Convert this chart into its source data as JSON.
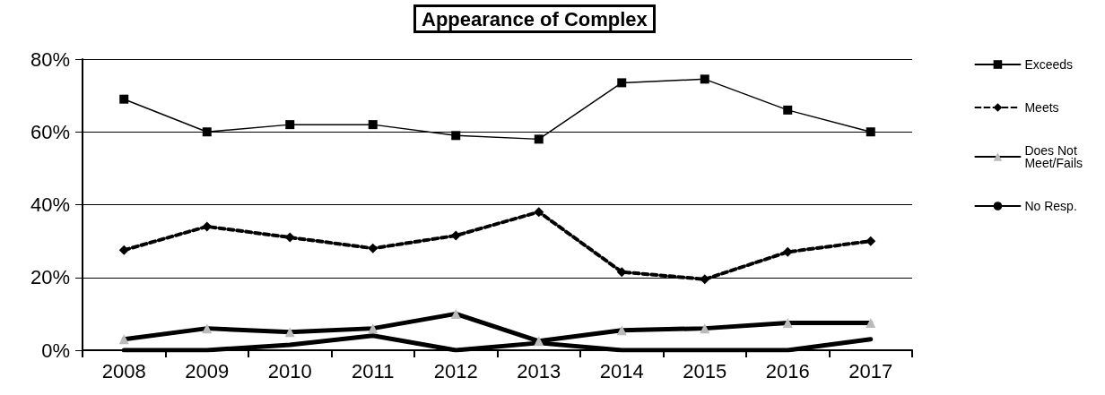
{
  "chart_data": {
    "type": "line",
    "title": "Appearance of Complex",
    "categories": [
      "2008",
      "2009",
      "2010",
      "2011",
      "2012",
      "2013",
      "2014",
      "2015",
      "2016",
      "2017"
    ],
    "series": [
      {
        "name": "Exceeds",
        "color": "#000000",
        "marker": "square",
        "line_style": "solid",
        "values": [
          69,
          60,
          62,
          62,
          59,
          58,
          73.5,
          74.5,
          66,
          60
        ]
      },
      {
        "name": "Meets",
        "color": "#000000",
        "marker": "diamond",
        "line_style": "dashed",
        "values": [
          27.5,
          34,
          31,
          28,
          31.5,
          38,
          21.5,
          19.5,
          27,
          30
        ]
      },
      {
        "name": "Does Not\nMeet/Fails",
        "color": "#000000",
        "marker": "triangle",
        "line_style": "solid",
        "values": [
          3,
          6,
          5,
          6,
          10,
          2.5,
          5.5,
          6,
          7.5,
          7.5
        ]
      },
      {
        "name": "No Resp.",
        "color": "#000000",
        "marker": "none",
        "line_style": "solid",
        "values": [
          0,
          0,
          1.5,
          4,
          0,
          2,
          0,
          0,
          0,
          3
        ]
      }
    ],
    "ylim": [
      0,
      80
    ],
    "yticks": [
      {
        "value": 0,
        "label": "0%"
      },
      {
        "value": 20,
        "label": "20%"
      },
      {
        "value": 40,
        "label": "40%"
      },
      {
        "value": 60,
        "label": "60%"
      },
      {
        "value": 80,
        "label": "80%"
      }
    ],
    "grid": "y",
    "legend": "right"
  }
}
